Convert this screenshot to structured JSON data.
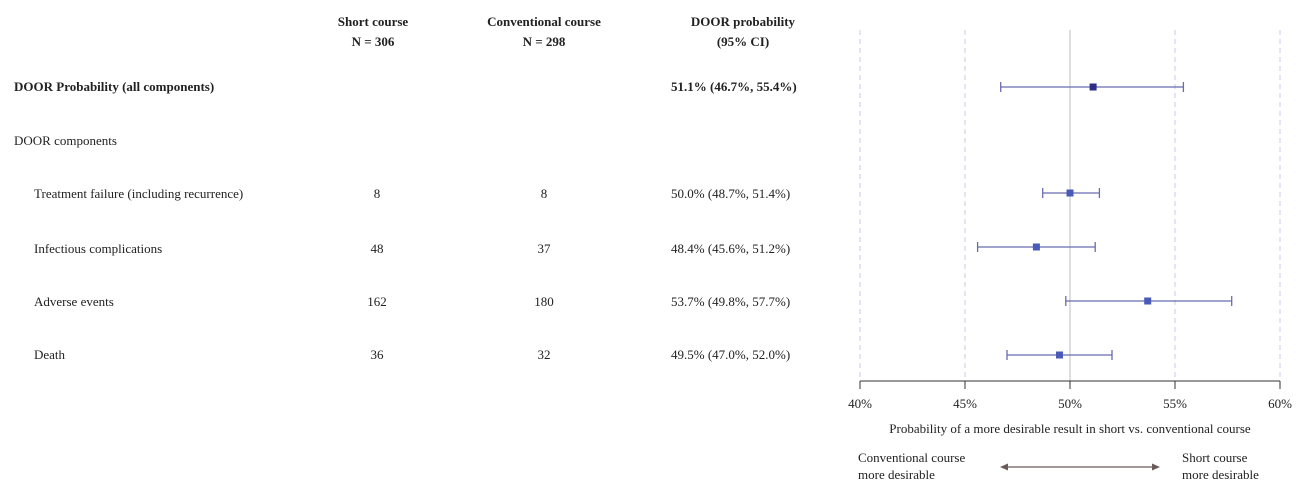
{
  "columns": {
    "short": {
      "title": "Short course",
      "n": "N = 306"
    },
    "conventional": {
      "title": "Conventional course",
      "n": "N = 298"
    },
    "door": {
      "title": "DOOR probability",
      "ci": "(95% CI)"
    }
  },
  "overall": {
    "label": "DOOR Probability (all components)",
    "ci_text": "51.1% (46.7%, 55.4%)"
  },
  "section_label": "DOOR components",
  "rows": [
    {
      "label": "Treatment failure (including recurrence)",
      "short": "8",
      "conventional": "8",
      "ci_text": "50.0% (48.7%, 51.4%)"
    },
    {
      "label": "Infectious complications",
      "short": "48",
      "conventional": "37",
      "ci_text": "48.4% (45.6%, 51.2%)"
    },
    {
      "label": "Adverse events",
      "short": "162",
      "conventional": "180",
      "ci_text": "53.7% (49.8%, 57.7%)"
    },
    {
      "label": "Death",
      "short": "36",
      "conventional": "32",
      "ci_text": "49.5% (47.0%, 52.0%)"
    }
  ],
  "direction": {
    "left_line1": "Conventional course",
    "left_line2": "more desirable",
    "right_line1": "Short course",
    "right_line2": "more desirable"
  },
  "colors": {
    "overall_marker": "#2e2e8a",
    "component_marker": "#4a5ab8",
    "whisker": "#6a6ab0",
    "grid": "#c8c8e8",
    "ref_line": "#c8c8d0"
  },
  "chart_data": {
    "type": "scatter",
    "xlabel": "Probability of a more desirable result in short vs. conventional course",
    "xlim": [
      40,
      60
    ],
    "ticks": [
      40,
      45,
      50,
      55,
      60
    ],
    "tick_labels": [
      "40%",
      "45%",
      "50%",
      "55%",
      "60%"
    ],
    "reference_value": 50,
    "grid": true,
    "points": [
      {
        "name": "DOOR Probability (all components)",
        "est": 51.1,
        "lo": 46.7,
        "hi": 55.4,
        "kind": "overall"
      },
      {
        "name": "Treatment failure (including recurrence)",
        "est": 50.0,
        "lo": 48.7,
        "hi": 51.4,
        "kind": "component"
      },
      {
        "name": "Infectious complications",
        "est": 48.4,
        "lo": 45.6,
        "hi": 51.2,
        "kind": "component"
      },
      {
        "name": "Adverse events",
        "est": 53.7,
        "lo": 49.8,
        "hi": 57.7,
        "kind": "component"
      },
      {
        "name": "Death",
        "est": 49.5,
        "lo": 47.0,
        "hi": 52.0,
        "kind": "component"
      }
    ]
  }
}
